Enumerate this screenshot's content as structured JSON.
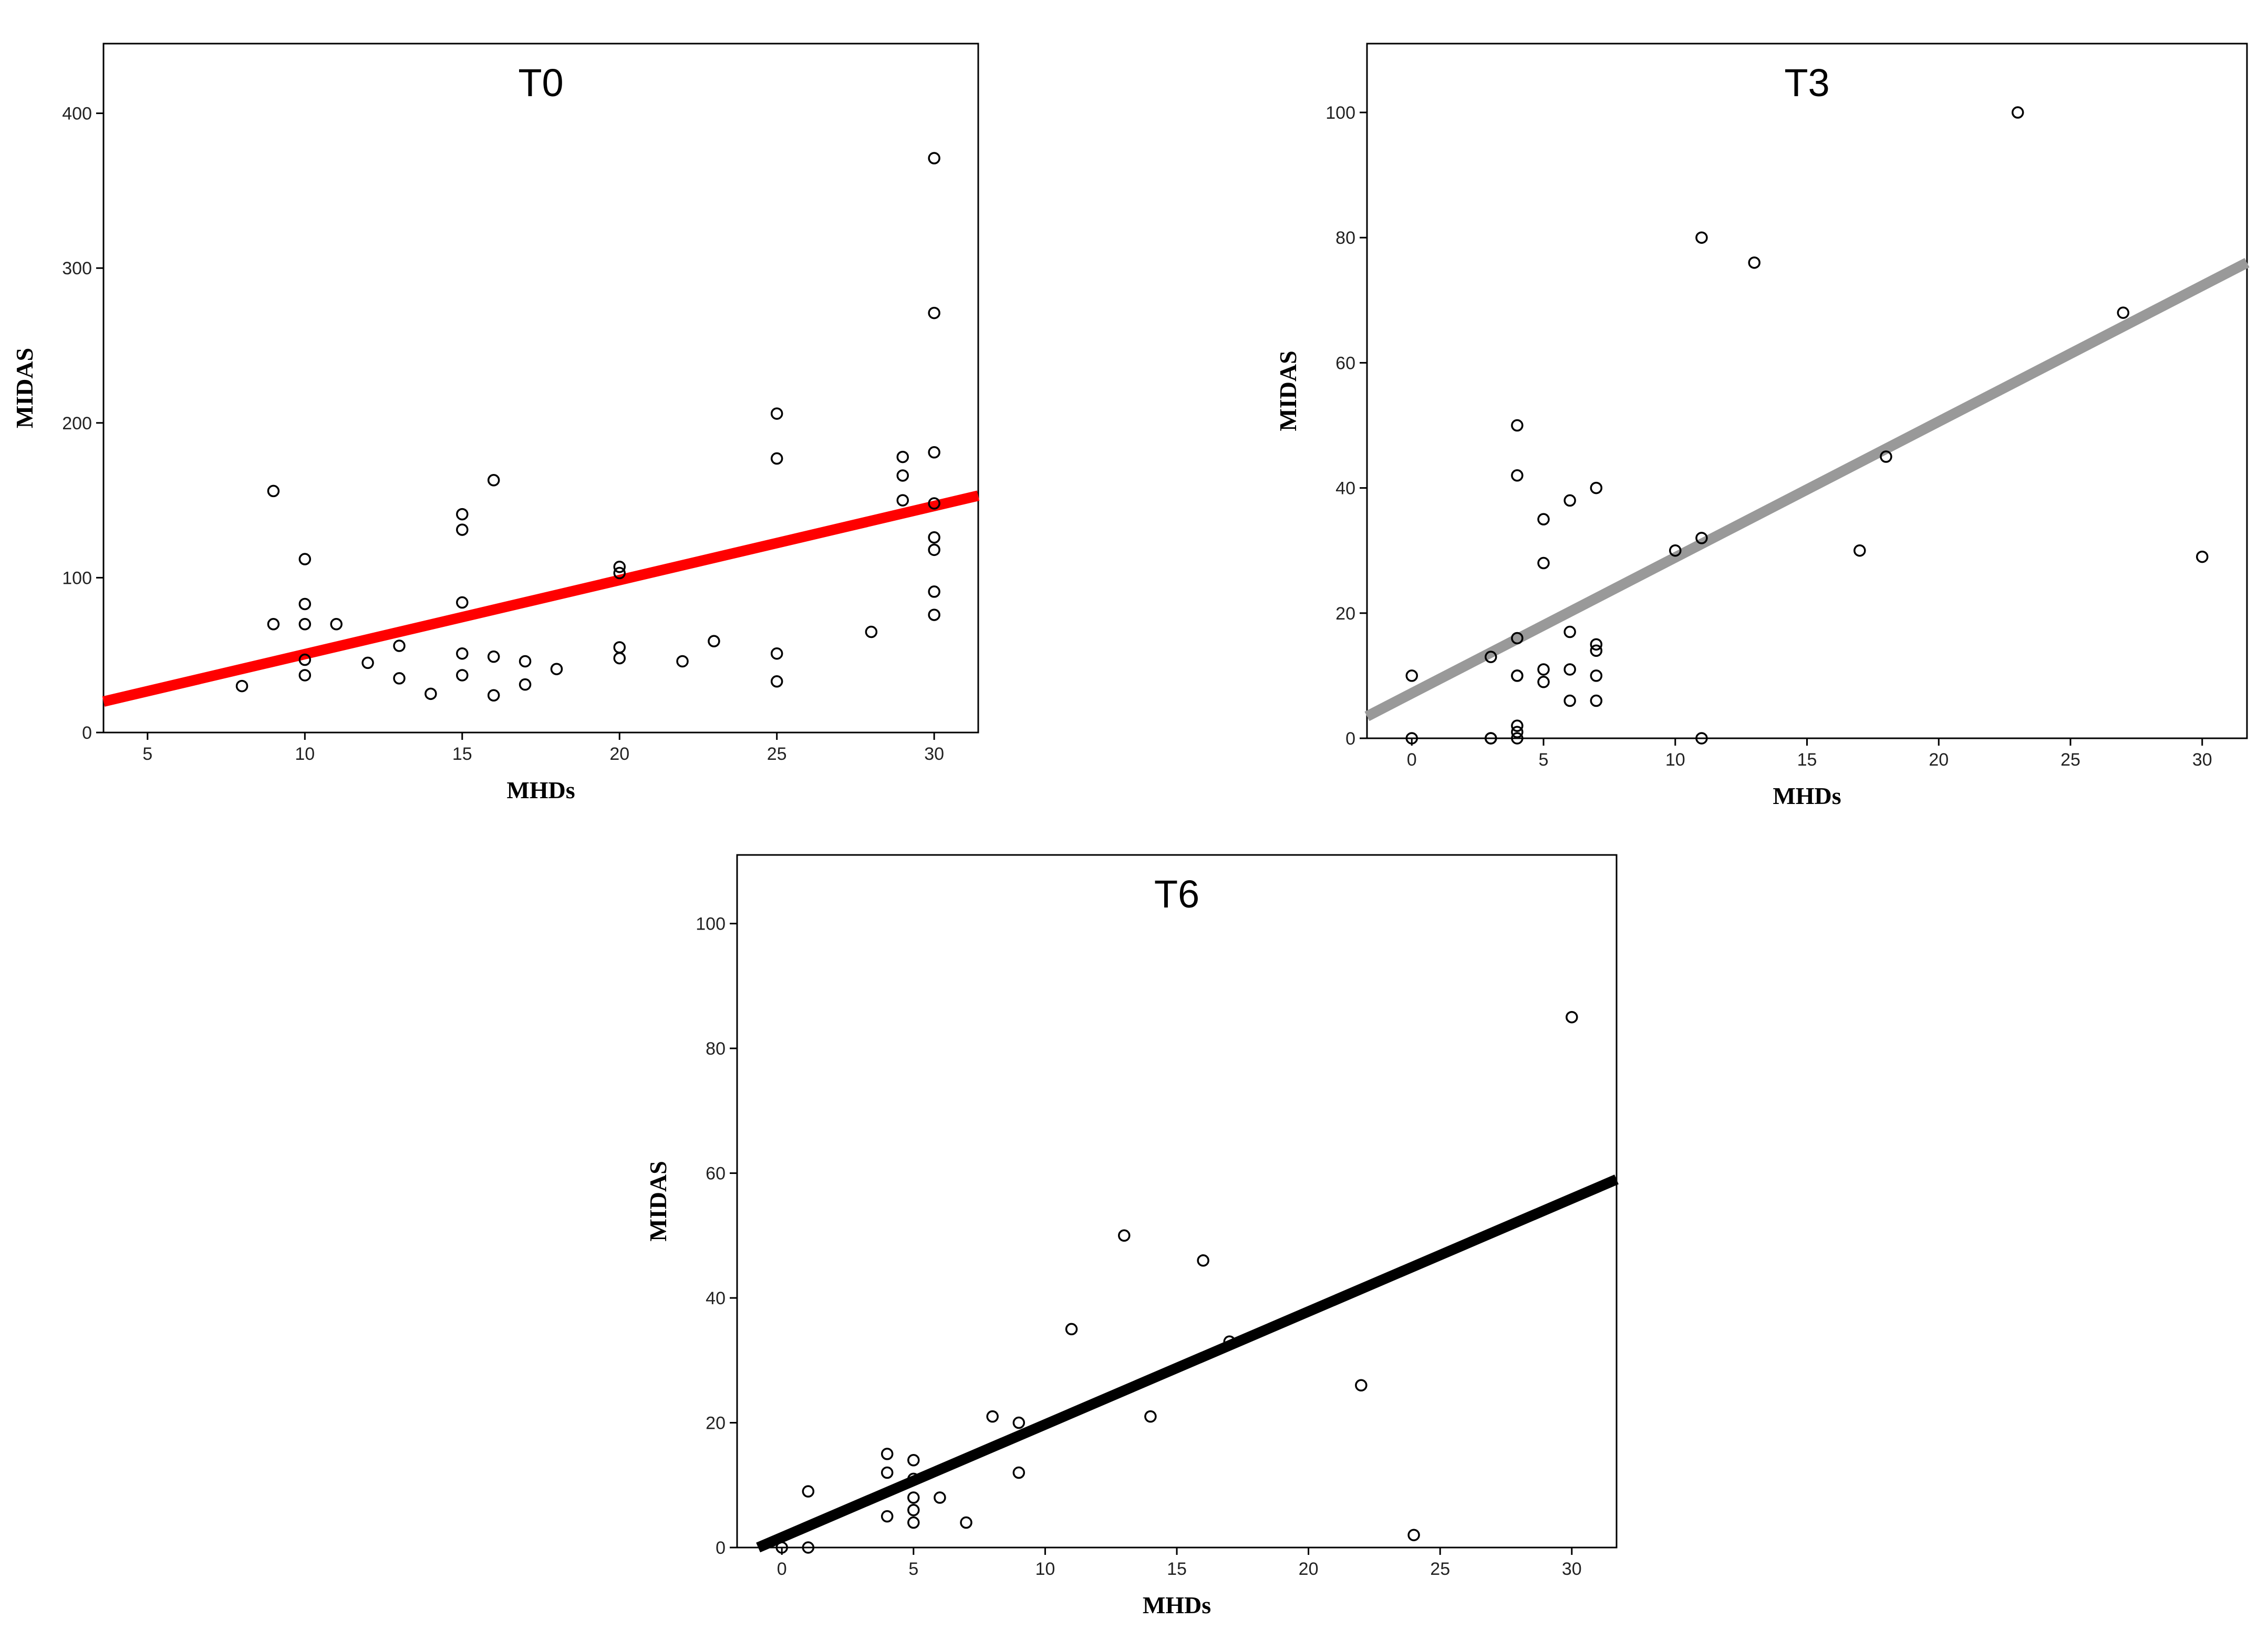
{
  "chart_data": [
    {
      "type": "scatter",
      "title": "T0",
      "xlabel": "MHDs",
      "ylabel": "MIDAS",
      "xlim": [
        3.6,
        31.4
      ],
      "ylim": [
        0,
        445
      ],
      "xticks": [
        5,
        10,
        15,
        20,
        25,
        30
      ],
      "yticks": [
        0,
        100,
        200,
        300,
        400
      ],
      "fit_line": {
        "x": [
          3.6,
          31.4
        ],
        "y": [
          20,
          153
        ],
        "color": "#ff0000"
      },
      "points": [
        {
          "x": 8,
          "y": 30
        },
        {
          "x": 9,
          "y": 70
        },
        {
          "x": 9,
          "y": 156
        },
        {
          "x": 10,
          "y": 112
        },
        {
          "x": 10,
          "y": 83
        },
        {
          "x": 10,
          "y": 70
        },
        {
          "x": 10,
          "y": 47
        },
        {
          "x": 10,
          "y": 37
        },
        {
          "x": 11,
          "y": 70
        },
        {
          "x": 12,
          "y": 45
        },
        {
          "x": 13,
          "y": 56
        },
        {
          "x": 13,
          "y": 35
        },
        {
          "x": 14,
          "y": 25
        },
        {
          "x": 15,
          "y": 141
        },
        {
          "x": 15,
          "y": 131
        },
        {
          "x": 15,
          "y": 84
        },
        {
          "x": 15,
          "y": 51
        },
        {
          "x": 15,
          "y": 37
        },
        {
          "x": 16,
          "y": 163
        },
        {
          "x": 16,
          "y": 49
        },
        {
          "x": 16,
          "y": 24
        },
        {
          "x": 17,
          "y": 46
        },
        {
          "x": 17,
          "y": 31
        },
        {
          "x": 18,
          "y": 41
        },
        {
          "x": 20,
          "y": 107
        },
        {
          "x": 20,
          "y": 103
        },
        {
          "x": 20,
          "y": 55
        },
        {
          "x": 20,
          "y": 48
        },
        {
          "x": 22,
          "y": 46
        },
        {
          "x": 23,
          "y": 59
        },
        {
          "x": 25,
          "y": 206
        },
        {
          "x": 25,
          "y": 177
        },
        {
          "x": 25,
          "y": 51
        },
        {
          "x": 25,
          "y": 33
        },
        {
          "x": 28,
          "y": 65
        },
        {
          "x": 29,
          "y": 178
        },
        {
          "x": 29,
          "y": 166
        },
        {
          "x": 29,
          "y": 150
        },
        {
          "x": 30,
          "y": 371
        },
        {
          "x": 30,
          "y": 271
        },
        {
          "x": 30,
          "y": 181
        },
        {
          "x": 30,
          "y": 148
        },
        {
          "x": 30,
          "y": 126
        },
        {
          "x": 30,
          "y": 118
        },
        {
          "x": 30,
          "y": 91
        },
        {
          "x": 30,
          "y": 76
        }
      ]
    },
    {
      "type": "scatter",
      "title": "T3",
      "xlabel": "MHDs",
      "ylabel": "MIDAS",
      "xlim": [
        -1.7,
        31.7
      ],
      "ylim": [
        0,
        111
      ],
      "xticks": [
        0,
        5,
        10,
        15,
        20,
        25,
        30
      ],
      "yticks": [
        0,
        20,
        40,
        60,
        80,
        100
      ],
      "fit_line": {
        "x": [
          -1.7,
          31.7
        ],
        "y": [
          3.5,
          76
        ],
        "color": "#999999"
      },
      "points": [
        {
          "x": 0,
          "y": 10
        },
        {
          "x": 0,
          "y": 0
        },
        {
          "x": 3,
          "y": 13
        },
        {
          "x": 3,
          "y": 0
        },
        {
          "x": 3,
          "y": 0
        },
        {
          "x": 4,
          "y": 50
        },
        {
          "x": 4,
          "y": 42
        },
        {
          "x": 4,
          "y": 16
        },
        {
          "x": 4,
          "y": 10
        },
        {
          "x": 4,
          "y": 10
        },
        {
          "x": 4,
          "y": 2
        },
        {
          "x": 4,
          "y": 1
        },
        {
          "x": 4,
          "y": 0
        },
        {
          "x": 5,
          "y": 35
        },
        {
          "x": 5,
          "y": 28
        },
        {
          "x": 5,
          "y": 11
        },
        {
          "x": 5,
          "y": 9
        },
        {
          "x": 6,
          "y": 38
        },
        {
          "x": 6,
          "y": 17
        },
        {
          "x": 6,
          "y": 11
        },
        {
          "x": 6,
          "y": 6
        },
        {
          "x": 7,
          "y": 40
        },
        {
          "x": 7,
          "y": 15
        },
        {
          "x": 7,
          "y": 14
        },
        {
          "x": 7,
          "y": 10
        },
        {
          "x": 7,
          "y": 6
        },
        {
          "x": 10,
          "y": 30
        },
        {
          "x": 11,
          "y": 80
        },
        {
          "x": 11,
          "y": 32
        },
        {
          "x": 11,
          "y": 0
        },
        {
          "x": 13,
          "y": 76
        },
        {
          "x": 17,
          "y": 30
        },
        {
          "x": 18,
          "y": 45
        },
        {
          "x": 23,
          "y": 100
        },
        {
          "x": 27,
          "y": 68
        },
        {
          "x": 30,
          "y": 29
        }
      ]
    },
    {
      "type": "scatter",
      "title": "T6",
      "xlabel": "MHDs",
      "ylabel": "MIDAS",
      "xlim": [
        -1.7,
        31.7
      ],
      "ylim": [
        0,
        111
      ],
      "xticks": [
        0,
        5,
        10,
        15,
        20,
        25,
        30
      ],
      "yticks": [
        0,
        20,
        40,
        60,
        80,
        100
      ],
      "fit_line": {
        "x": [
          -0.9,
          31.7
        ],
        "y": [
          0,
          59
        ],
        "color": "#000000"
      },
      "points": [
        {
          "x": 0,
          "y": 0
        },
        {
          "x": 1,
          "y": 9
        },
        {
          "x": 1,
          "y": 0
        },
        {
          "x": 4,
          "y": 15
        },
        {
          "x": 4,
          "y": 12
        },
        {
          "x": 4,
          "y": 5
        },
        {
          "x": 5,
          "y": 14
        },
        {
          "x": 5,
          "y": 11
        },
        {
          "x": 5,
          "y": 8
        },
        {
          "x": 5,
          "y": 6
        },
        {
          "x": 5,
          "y": 4
        },
        {
          "x": 6,
          "y": 8
        },
        {
          "x": 7,
          "y": 4
        },
        {
          "x": 8,
          "y": 21
        },
        {
          "x": 9,
          "y": 20
        },
        {
          "x": 9,
          "y": 12
        },
        {
          "x": 11,
          "y": 35
        },
        {
          "x": 13,
          "y": 50
        },
        {
          "x": 14,
          "y": 21
        },
        {
          "x": 16,
          "y": 46
        },
        {
          "x": 17,
          "y": 33
        },
        {
          "x": 22,
          "y": 26
        },
        {
          "x": 24,
          "y": 2
        },
        {
          "x": 30,
          "y": 85
        }
      ]
    }
  ]
}
